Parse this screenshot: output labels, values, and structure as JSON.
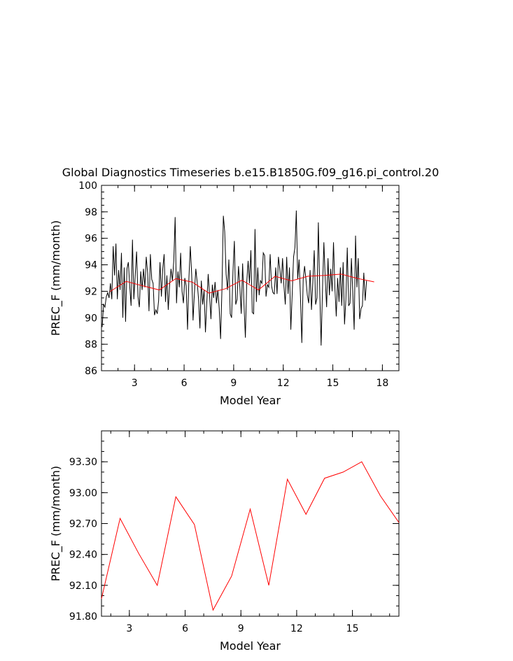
{
  "chart_data": [
    {
      "type": "line",
      "title": "Global Diagnostics Timeseries b.e15.B1850G.f09_g16.pi_control.20",
      "xlabel": "Model Year",
      "ylabel": "PREC_F (mm/month)",
      "xlim": [
        1,
        19
      ],
      "ylim": [
        86,
        100
      ],
      "xticks": [
        3,
        6,
        9,
        12,
        15,
        18
      ],
      "yticks": [
        86,
        88,
        90,
        92,
        94,
        96,
        98,
        100
      ],
      "ytick_labels": [
        "86",
        "88",
        "90",
        "92",
        "94",
        "96",
        "98",
        "100"
      ],
      "grid": false,
      "series": [
        {
          "color": "#000000",
          "x_start": 1.0417,
          "x_step": 0.08333,
          "values": [
            89.3,
            91.0,
            90.8,
            91.6,
            91.9,
            91.5,
            92.6,
            91.4,
            95.4,
            93.2,
            95.6,
            91.4,
            93.6,
            92.1,
            94.9,
            90.0,
            93.8,
            89.7,
            93.7,
            94.2,
            92.4,
            90.9,
            95.9,
            91.4,
            93.2,
            95.0,
            91.6,
            90.8,
            93.5,
            92.1,
            93.7,
            92.3,
            94.6,
            93.4,
            90.5,
            94.8,
            92.9,
            92.6,
            90.2,
            90.6,
            90.3,
            91.3,
            94.2,
            91.6,
            93.7,
            94.8,
            91.2,
            93.2,
            90.6,
            92.5,
            93.7,
            92.8,
            94.3,
            97.6,
            91.1,
            93.5,
            92.3,
            94.9,
            92.0,
            91.1,
            93.0,
            92.4,
            89.1,
            93.0,
            95.4,
            93.3,
            89.8,
            91.9,
            93.7,
            92.7,
            91.4,
            89.2,
            92.8,
            91.0,
            92.1,
            88.9,
            91.2,
            93.3,
            91.7,
            89.9,
            92.5,
            91.5,
            92.7,
            91.1,
            92.1,
            90.7,
            88.4,
            92.2,
            97.7,
            96.5,
            93.3,
            92.1,
            94.4,
            90.3,
            90.0,
            93.5,
            95.8,
            91.0,
            91.4,
            93.9,
            92.3,
            90.3,
            94.1,
            91.0,
            88.5,
            92.7,
            94.3,
            92.6,
            95.1,
            90.4,
            90.3,
            96.7,
            91.2,
            93.8,
            91.7,
            92.8,
            92.6,
            94.9,
            94.7,
            91.6,
            92.5,
            92.3,
            94.8,
            92.4,
            91.9,
            91.8,
            93.8,
            91.8,
            94.6,
            93.7,
            92.6,
            94.5,
            92.4,
            91.0,
            94.6,
            91.8,
            93.8,
            89.1,
            91.8,
            94.6,
            95.3,
            98.1,
            92.9,
            94.4,
            91.6,
            88.1,
            92.9,
            93.9,
            92.9,
            91.7,
            91.1,
            93.6,
            90.6,
            92.7,
            95.1,
            91.0,
            91.5,
            97.2,
            92.1,
            87.9,
            92.1,
            95.7,
            92.9,
            90.8,
            94.5,
            91.7,
            93.7,
            92.0,
            95.7,
            92.3,
            90.1,
            93.0,
            91.2,
            93.8,
            90.9,
            94.2,
            89.5,
            91.4,
            95.3,
            90.9,
            91.1,
            94.5,
            91.9,
            89.1,
            96.2,
            92.3,
            94.5,
            89.9,
            90.7,
            90.9,
            93.4,
            91.3,
            92.8
          ]
        },
        {
          "color": "#ff0000",
          "x": [
            1.5,
            2.5,
            3.5,
            4.5,
            5.5,
            6.5,
            7.5,
            8.5,
            9.5,
            10.5,
            11.5,
            12.5,
            13.5,
            14.5,
            15.5,
            16.5,
            17.5
          ],
          "values": [
            91.97,
            92.75,
            92.41,
            92.1,
            92.96,
            92.69,
            91.86,
            92.19,
            92.84,
            92.1,
            93.13,
            92.79,
            93.14,
            93.2,
            93.3,
            92.97,
            92.71
          ]
        }
      ]
    },
    {
      "type": "line",
      "xlabel": "Model Year",
      "ylabel": "PREC_F (mm/month)",
      "xlim": [
        1.5,
        17.5
      ],
      "ylim": [
        91.8,
        93.6
      ],
      "xticks": [
        3,
        6,
        9,
        12,
        15
      ],
      "yticks": [
        91.8,
        92.1,
        92.4,
        92.7,
        93.0,
        93.3
      ],
      "ytick_labels": [
        "91.80",
        "92.10",
        "92.40",
        "92.70",
        "93.00",
        "93.30"
      ],
      "grid": false,
      "series": [
        {
          "color": "#ff0000",
          "x": [
            1.5,
            2.5,
            3.5,
            4.5,
            5.5,
            6.5,
            7.5,
            8.5,
            9.5,
            10.5,
            11.5,
            12.5,
            13.5,
            14.5,
            15.5,
            16.5,
            17.5
          ],
          "values": [
            91.97,
            92.75,
            92.41,
            92.1,
            92.96,
            92.69,
            91.86,
            92.19,
            92.84,
            92.1,
            93.13,
            92.79,
            93.14,
            93.2,
            93.3,
            92.97,
            92.71
          ]
        }
      ]
    }
  ]
}
